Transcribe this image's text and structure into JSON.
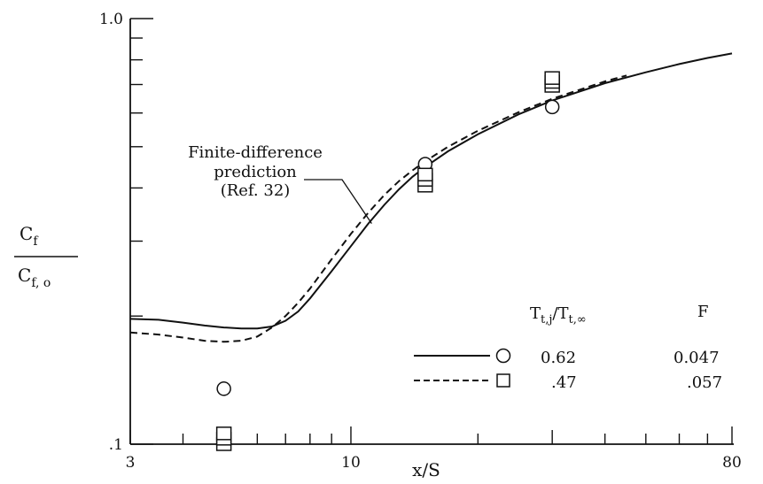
{
  "chart_data": {
    "type": "line",
    "xscale": "log",
    "yscale": "log",
    "xlim": [
      3,
      80
    ],
    "ylim": [
      0.1,
      1.0
    ],
    "xlabel": "x/S",
    "ylabel_num": "C",
    "ylabel_num_sub": "f",
    "ylabel_den": "C",
    "ylabel_den_sub": "f, o",
    "x_tick_labels": [
      {
        "value": 3,
        "label": "3"
      },
      {
        "value": 10,
        "label": "10"
      },
      {
        "value": 80,
        "label": "80"
      }
    ],
    "y_tick_labels": [
      {
        "value": 0.1,
        "label": ".1"
      },
      {
        "value": 1.0,
        "label": "1.0"
      }
    ],
    "x_ticks": [
      3,
      4,
      5,
      6,
      7,
      8,
      9,
      10,
      20,
      30,
      40,
      50,
      60,
      70,
      80
    ],
    "y_ticks": [
      0.1,
      0.2,
      0.3,
      0.4,
      0.5,
      0.6,
      0.7,
      0.8,
      0.9,
      1.0
    ],
    "annotation": {
      "lines": [
        "Finite-difference",
        "prediction",
        "(Ref. 32)"
      ],
      "arrow_to": {
        "x": 11.2,
        "y": 0.33
      }
    },
    "series": [
      {
        "style": "solid",
        "marker": "circle",
        "legend_ratio": "0.62",
        "legend_F": "0.047",
        "curve": [
          {
            "x": 3.0,
            "y": 0.197
          },
          {
            "x": 3.5,
            "y": 0.196
          },
          {
            "x": 4.0,
            "y": 0.193
          },
          {
            "x": 4.5,
            "y": 0.19
          },
          {
            "x": 5.0,
            "y": 0.188
          },
          {
            "x": 5.5,
            "y": 0.187
          },
          {
            "x": 6.0,
            "y": 0.187
          },
          {
            "x": 6.5,
            "y": 0.189
          },
          {
            "x": 7.0,
            "y": 0.195
          },
          {
            "x": 7.5,
            "y": 0.205
          },
          {
            "x": 8.0,
            "y": 0.22
          },
          {
            "x": 9.0,
            "y": 0.255
          },
          {
            "x": 10.0,
            "y": 0.292
          },
          {
            "x": 11.0,
            "y": 0.33
          },
          {
            "x": 12.0,
            "y": 0.365
          },
          {
            "x": 13.0,
            "y": 0.397
          },
          {
            "x": 14.0,
            "y": 0.425
          },
          {
            "x": 15.0,
            "y": 0.448
          },
          {
            "x": 17.0,
            "y": 0.488
          },
          {
            "x": 20.0,
            "y": 0.535
          },
          {
            "x": 25.0,
            "y": 0.596
          },
          {
            "x": 30.0,
            "y": 0.642
          },
          {
            "x": 40.0,
            "y": 0.705
          },
          {
            "x": 50.0,
            "y": 0.748
          },
          {
            "x": 60.0,
            "y": 0.782
          },
          {
            "x": 70.0,
            "y": 0.808
          },
          {
            "x": 80.0,
            "y": 0.828
          }
        ],
        "points": [
          {
            "x": 5.0,
            "y": 0.135
          },
          {
            "x": 15.0,
            "y": 0.455
          },
          {
            "x": 30.0,
            "y": 0.62
          }
        ]
      },
      {
        "style": "dashed",
        "marker": "square",
        "legend_ratio": ".47",
        "legend_F": ".057",
        "curve": [
          {
            "x": 3.0,
            "y": 0.183
          },
          {
            "x": 3.5,
            "y": 0.181
          },
          {
            "x": 4.0,
            "y": 0.178
          },
          {
            "x": 4.5,
            "y": 0.175
          },
          {
            "x": 5.0,
            "y": 0.174
          },
          {
            "x": 5.5,
            "y": 0.175
          },
          {
            "x": 6.0,
            "y": 0.179
          },
          {
            "x": 6.5,
            "y": 0.188
          },
          {
            "x": 7.0,
            "y": 0.2
          },
          {
            "x": 7.5,
            "y": 0.215
          },
          {
            "x": 8.0,
            "y": 0.232
          },
          {
            "x": 9.0,
            "y": 0.272
          },
          {
            "x": 10.0,
            "y": 0.312
          },
          {
            "x": 11.0,
            "y": 0.35
          },
          {
            "x": 12.0,
            "y": 0.385
          },
          {
            "x": 13.0,
            "y": 0.415
          },
          {
            "x": 14.0,
            "y": 0.44
          },
          {
            "x": 15.0,
            "y": 0.462
          },
          {
            "x": 17.0,
            "y": 0.5
          },
          {
            "x": 20.0,
            "y": 0.545
          },
          {
            "x": 25.0,
            "y": 0.603
          },
          {
            "x": 30.0,
            "y": 0.648
          },
          {
            "x": 40.0,
            "y": 0.712
          },
          {
            "x": 45.0,
            "y": 0.735
          }
        ],
        "points": [
          {
            "x": 5.0,
            "y": 0.1
          },
          {
            "x": 5.0,
            "y": 0.103
          },
          {
            "x": 5.0,
            "y": 0.106
          },
          {
            "x": 15.0,
            "y": 0.405
          },
          {
            "x": 15.0,
            "y": 0.418
          },
          {
            "x": 15.0,
            "y": 0.43
          },
          {
            "x": 30.0,
            "y": 0.695
          },
          {
            "x": 30.0,
            "y": 0.71
          },
          {
            "x": 30.0,
            "y": 0.725
          }
        ]
      }
    ],
    "legend": {
      "header_ratio_main": "T",
      "header_ratio_sub1": "t,j",
      "header_ratio_slash": "/T",
      "header_ratio_sub2": "t,∞",
      "header_F": "F"
    }
  }
}
